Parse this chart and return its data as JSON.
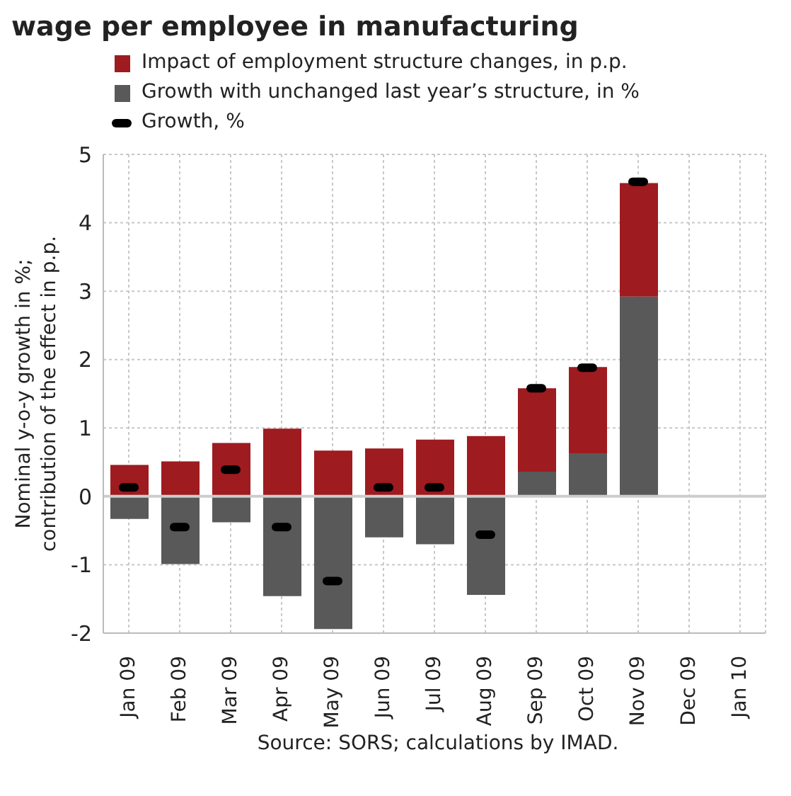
{
  "chart_data": {
    "type": "bar",
    "title": "wage per employee in manufacturing",
    "categories": [
      "Jan 09",
      "Feb 09",
      "Mar 09",
      "Apr 09",
      "May 09",
      "Jun 09",
      "Jul 09",
      "Aug 09",
      "Sep 09",
      "Oct 09",
      "Nov 09",
      "Dec 09",
      "Jan 10"
    ],
    "series": [
      {
        "name": "Growth with unchanged last year’s structure, in %",
        "color": "#595959",
        "values": [
          -0.33,
          -0.99,
          -0.38,
          -1.46,
          -1.94,
          -0.6,
          -0.7,
          -1.44,
          0.36,
          0.63,
          2.92,
          null,
          null
        ]
      },
      {
        "name": "Impact of employment structure changes, in p.p.",
        "color": "#9e1b20",
        "values": [
          0.46,
          0.51,
          0.78,
          0.99,
          0.67,
          0.7,
          0.83,
          0.88,
          1.22,
          1.26,
          1.66,
          null,
          null
        ]
      },
      {
        "name": "Growth, %",
        "type": "scatter",
        "color": "#000000",
        "values": [
          0.13,
          -0.45,
          0.39,
          -0.45,
          -1.24,
          0.13,
          0.13,
          -0.56,
          1.58,
          1.88,
          4.6,
          null,
          null
        ]
      }
    ],
    "stacked": true,
    "ylim": [
      -2,
      5
    ],
    "yticks": [
      -2,
      -1,
      0,
      1,
      2,
      3,
      4,
      5
    ],
    "grid": true,
    "legend": "top left",
    "ylabel": "Nominal y-o-y growth in %;\ncontribution of the effect in p.p.",
    "annotations": [
      "Source: SORS; calculations by IMAD."
    ]
  }
}
